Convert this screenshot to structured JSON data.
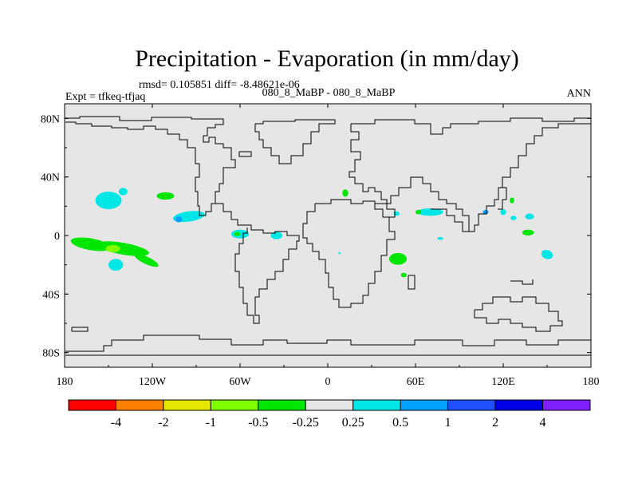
{
  "chart_data": {
    "type": "heatmap",
    "title": "Precipitation - Evaporation (in mm/day)",
    "stats": "rmsd= 0.105851 diff= -8.48621e-06",
    "experiment": "Expt = tfkeq-tfjaq",
    "case": "080_8_MaBP - 080_8_MaBP",
    "season": "ANN",
    "xlim": [
      -180,
      180
    ],
    "ylim": [
      -90,
      90
    ],
    "x_ticks": [
      {
        "value": -180,
        "label": "180"
      },
      {
        "value": -120,
        "label": "120W"
      },
      {
        "value": -60,
        "label": "60W"
      },
      {
        "value": 0,
        "label": "0"
      },
      {
        "value": 60,
        "label": "60E"
      },
      {
        "value": 120,
        "label": "120E"
      },
      {
        "value": 180,
        "label": "180"
      }
    ],
    "y_ticks": [
      {
        "value": 80,
        "label": "80N"
      },
      {
        "value": 40,
        "label": "40N"
      },
      {
        "value": 0,
        "label": "0"
      },
      {
        "value": -40,
        "label": "40S"
      },
      {
        "value": -80,
        "label": "80S"
      }
    ],
    "background_color": "#e6e6e6",
    "colorbar": {
      "colors": [
        "#ff0000",
        "#ff8000",
        "#e6e600",
        "#80ff00",
        "#00e600",
        "#e6e6e6",
        "#00e6e6",
        "#00a0ff",
        "#1e50ff",
        "#0000e6",
        "#8020ff"
      ],
      "labels": [
        "-4",
        "-2",
        "-1",
        "-0.5",
        "-0.25",
        "0.25",
        "0.5",
        "1",
        "2",
        "4"
      ]
    },
    "anomalies": [
      {
        "lon": -150,
        "lat": 24,
        "rx": 9,
        "ry": 6,
        "angle": 0,
        "color": "#00e6e6"
      },
      {
        "lon": -140,
        "lat": 30,
        "rx": 3,
        "ry": 2.5,
        "angle": 0,
        "color": "#00e6e6"
      },
      {
        "lon": -111,
        "lat": 27,
        "rx": 6,
        "ry": 2.5,
        "angle": 0,
        "color": "#00e600"
      },
      {
        "lon": -95,
        "lat": 13,
        "rx": 11,
        "ry": 3.5,
        "angle": -8,
        "color": "#00e6e6"
      },
      {
        "lon": -102,
        "lat": 11,
        "rx": 2.5,
        "ry": 2,
        "angle": 0,
        "color": "#00a0ff"
      },
      {
        "lon": -162,
        "lat": -6,
        "rx": 14,
        "ry": 4,
        "angle": 10,
        "color": "#00e600"
      },
      {
        "lon": -140,
        "lat": -9,
        "rx": 18,
        "ry": 4,
        "angle": 10,
        "color": "#00e600"
      },
      {
        "lon": -147,
        "lat": -9,
        "rx": 5,
        "ry": 2.5,
        "angle": 0,
        "color": "#80ff00"
      },
      {
        "lon": -124,
        "lat": -17,
        "rx": 9,
        "ry": 2.5,
        "angle": 25,
        "color": "#00e600"
      },
      {
        "lon": -145,
        "lat": -20,
        "rx": 5,
        "ry": 4,
        "angle": 0,
        "color": "#00e6e6"
      },
      {
        "lon": -60,
        "lat": 1,
        "rx": 6,
        "ry": 3,
        "angle": 0,
        "color": "#00e6e6"
      },
      {
        "lon": -62,
        "lat": 1,
        "rx": 2,
        "ry": 1.5,
        "angle": 0,
        "color": "#00e600"
      },
      {
        "lon": -35,
        "lat": 0,
        "rx": 4,
        "ry": 2.5,
        "angle": 0,
        "color": "#00e6e6"
      },
      {
        "lon": 12,
        "lat": 29,
        "rx": 2,
        "ry": 2.5,
        "angle": 0,
        "color": "#00e600"
      },
      {
        "lon": 48,
        "lat": -16,
        "rx": 6,
        "ry": 4,
        "angle": 0,
        "color": "#00e600"
      },
      {
        "lon": 52,
        "lat": -27,
        "rx": 2,
        "ry": 1.5,
        "angle": 0,
        "color": "#00e600"
      },
      {
        "lon": 47,
        "lat": 15,
        "rx": 2,
        "ry": 1.5,
        "angle": 0,
        "color": "#00e6e6"
      },
      {
        "lon": 70,
        "lat": 16,
        "rx": 9,
        "ry": 2.5,
        "angle": 0,
        "color": "#00e6e6"
      },
      {
        "lon": 62,
        "lat": 16,
        "rx": 2,
        "ry": 1.5,
        "angle": 0,
        "color": "#00e600"
      },
      {
        "lon": 120,
        "lat": 16,
        "rx": 2,
        "ry": 2,
        "angle": 0,
        "color": "#00e6e6"
      },
      {
        "lon": 126,
        "lat": 24,
        "rx": 1.5,
        "ry": 2,
        "angle": 0,
        "color": "#00e600"
      },
      {
        "lon": 138,
        "lat": 13,
        "rx": 3,
        "ry": 2,
        "angle": 0,
        "color": "#00e6e6"
      },
      {
        "lon": 127,
        "lat": 12,
        "rx": 2,
        "ry": 1.5,
        "angle": 0,
        "color": "#00e6e6"
      },
      {
        "lon": 108,
        "lat": 16,
        "rx": 2,
        "ry": 1.5,
        "angle": 0,
        "color": "#00a0ff"
      },
      {
        "lon": 137,
        "lat": 2,
        "rx": 4,
        "ry": 2,
        "angle": 0,
        "color": "#00e600"
      },
      {
        "lon": 150,
        "lat": -13,
        "rx": 4,
        "ry": 3,
        "angle": 20,
        "color": "#00e6e6"
      },
      {
        "lon": 77,
        "lat": -2,
        "rx": 2,
        "ry": 1,
        "angle": 0,
        "color": "#00e6e6"
      },
      {
        "lon": 8,
        "lat": -12,
        "rx": 0.7,
        "ry": 0.7,
        "angle": 0,
        "color": "#00e6e6"
      }
    ]
  }
}
